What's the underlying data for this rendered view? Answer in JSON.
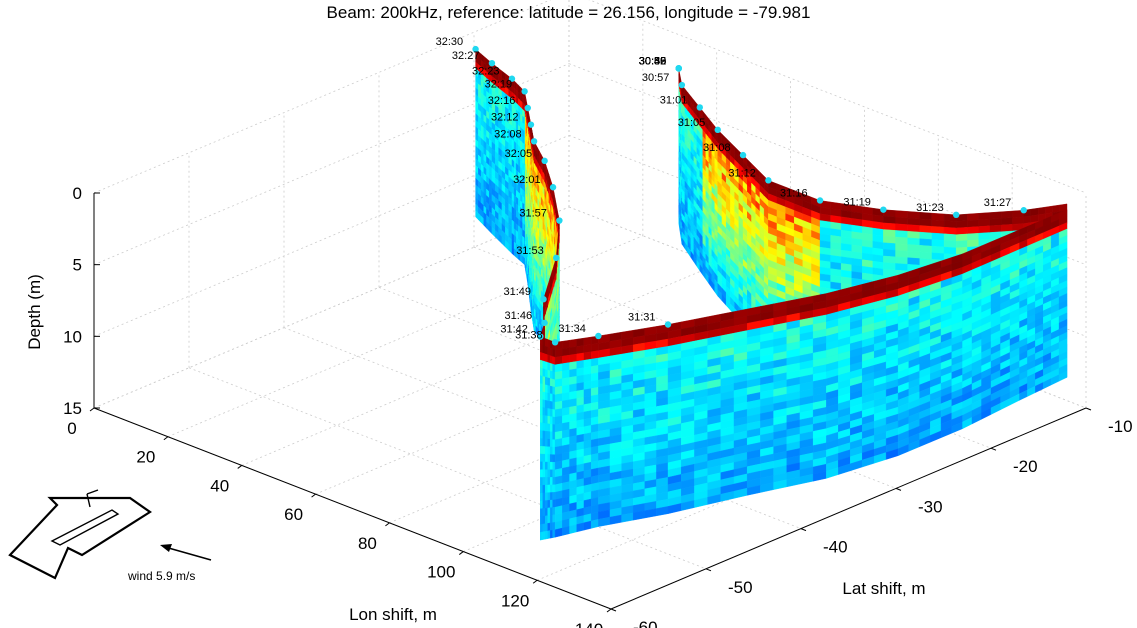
{
  "title": "Beam: 200kHz, reference: latitude = 26.156, longitude = -79.981",
  "chart_data": {
    "type": "heatmap",
    "description_free": true,
    "xlabel": "Lon shift, m",
    "ylabel": "Lat shift, m",
    "zlabel": "Depth (m)",
    "x_ticks": [
      "0",
      "20",
      "40",
      "60",
      "80",
      "100",
      "120",
      "140"
    ],
    "y_ticks": [
      "-60",
      "-50",
      "-40",
      "-30",
      "-20",
      "-10"
    ],
    "z_ticks": [
      "0",
      "5",
      "10",
      "15"
    ],
    "xlim": [
      0,
      140
    ],
    "ylim": [
      -60,
      -10
    ],
    "zlim": [
      0,
      15
    ],
    "grid": true,
    "colormap": "jet",
    "colors": {
      "surface": "#7f0000",
      "marker": "#20d8f0",
      "grid": "#cccccc"
    },
    "time_labels": [
      "32:30",
      "32:27",
      "32:23",
      "32:19",
      "32:16",
      "32:12",
      "32:08",
      "32:05",
      "32:01",
      "31:57",
      "31:53",
      "31:49",
      "31:46",
      "31:42",
      "31:38",
      "31:34",
      "31:31",
      "31:27",
      "31:23",
      "31:19",
      "31:16",
      "31:12",
      "31:08",
      "31:05",
      "31:01",
      "30:57",
      "30:53",
      "30:50",
      "30:46",
      "30:42",
      "30:39",
      "30:35"
    ],
    "wind": {
      "label": "wind 5.9 m/s",
      "speed_mps": 5.9
    }
  }
}
